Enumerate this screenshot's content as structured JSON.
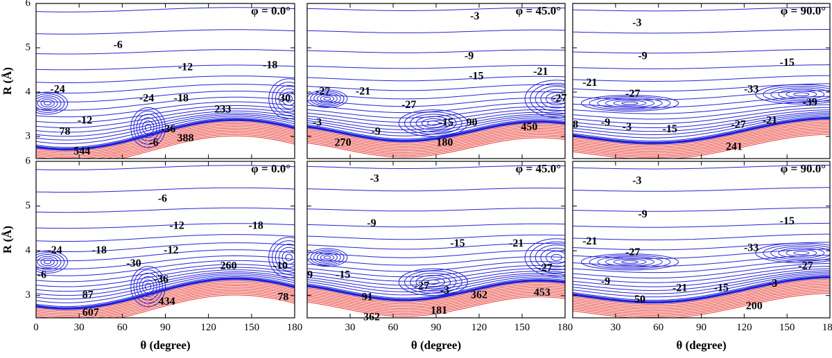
{
  "colors": {
    "attractive": "#2323d8",
    "repulsive": "#e8332b",
    "axis": "#000000"
  },
  "chart_data": [
    {
      "type": "contour",
      "row": 0,
      "col": 0,
      "phi_label": "φ = 0.0°",
      "kind": 0,
      "xlim": [
        0,
        180
      ],
      "ylim": [
        2.5,
        6
      ],
      "contour_labels": [
        {
          "text": "-6",
          "x": 57,
          "y": 5.05
        },
        {
          "text": "-12",
          "x": 104,
          "y": 4.55
        },
        {
          "text": "-18",
          "x": 163,
          "y": 4.6
        },
        {
          "text": "-24",
          "x": 15,
          "y": 4.05
        },
        {
          "text": "-24",
          "x": 77,
          "y": 3.85
        },
        {
          "text": "-18",
          "x": 101,
          "y": 3.85
        },
        {
          "text": "-30",
          "x": 172,
          "y": 3.85
        },
        {
          "text": "-12",
          "x": 34,
          "y": 3.35
        },
        {
          "text": "-36",
          "x": 92,
          "y": 3.15
        },
        {
          "text": "233",
          "x": 130,
          "y": 3.6
        },
        {
          "text": "78",
          "x": 20,
          "y": 3.1
        },
        {
          "text": "-6",
          "x": 82,
          "y": 2.85
        },
        {
          "text": "388",
          "x": 104,
          "y": 2.95
        },
        {
          "text": "544",
          "x": 32,
          "y": 2.65
        }
      ]
    },
    {
      "type": "contour",
      "row": 0,
      "col": 1,
      "phi_label": "φ = 45.0°",
      "kind": 1,
      "xlim": [
        0,
        180
      ],
      "ylim": [
        2.5,
        6
      ],
      "contour_labels": [
        {
          "text": "-3",
          "x": 117,
          "y": 5.7
        },
        {
          "text": "-9",
          "x": 113,
          "y": 4.8
        },
        {
          "text": "-15",
          "x": 118,
          "y": 4.35
        },
        {
          "text": "-21",
          "x": 163,
          "y": 4.45
        },
        {
          "text": "-27",
          "x": 11,
          "y": 4.0
        },
        {
          "text": "-21",
          "x": 39,
          "y": 4.0
        },
        {
          "text": "-27",
          "x": 176,
          "y": 3.85
        },
        {
          "text": "-27",
          "x": 71,
          "y": 3.7
        },
        {
          "text": "-3",
          "x": 7,
          "y": 3.3
        },
        {
          "text": "-9",
          "x": 48,
          "y": 3.1
        },
        {
          "text": "-15",
          "x": 97,
          "y": 3.3
        },
        {
          "text": "90",
          "x": 115,
          "y": 3.3
        },
        {
          "text": "450",
          "x": 155,
          "y": 3.2
        },
        {
          "text": "180",
          "x": 96,
          "y": 2.85
        },
        {
          "text": "270",
          "x": 25,
          "y": 2.85
        }
      ]
    },
    {
      "type": "contour",
      "row": 0,
      "col": 2,
      "phi_label": "φ = 90.0°",
      "kind": 2,
      "xlim": [
        0,
        180
      ],
      "ylim": [
        2.5,
        6
      ],
      "contour_labels": [
        {
          "text": "-3",
          "x": 45,
          "y": 5.55
        },
        {
          "text": "-9",
          "x": 49,
          "y": 4.8
        },
        {
          "text": "-15",
          "x": 150,
          "y": 4.65
        },
        {
          "text": "-21",
          "x": 12,
          "y": 4.2
        },
        {
          "text": "-33",
          "x": 125,
          "y": 4.05
        },
        {
          "text": "-27",
          "x": 42,
          "y": 3.95
        },
        {
          "text": "-39",
          "x": 166,
          "y": 3.75
        },
        {
          "text": "8",
          "x": 2,
          "y": 3.25
        },
        {
          "text": "-9",
          "x": 23,
          "y": 3.3
        },
        {
          "text": "-3",
          "x": 38,
          "y": 3.2
        },
        {
          "text": "-15",
          "x": 68,
          "y": 3.15
        },
        {
          "text": "-27",
          "x": 116,
          "y": 3.25
        },
        {
          "text": "-21",
          "x": 138,
          "y": 3.35
        },
        {
          "text": "241",
          "x": 113,
          "y": 2.75
        }
      ]
    },
    {
      "type": "contour",
      "row": 1,
      "col": 0,
      "phi_label": "φ = 0.0°",
      "kind": 0,
      "xlim": [
        0,
        180
      ],
      "ylim": [
        2.5,
        6
      ],
      "contour_labels": [
        {
          "text": "-6",
          "x": 88,
          "y": 5.15
        },
        {
          "text": "-12",
          "x": 98,
          "y": 4.55
        },
        {
          "text": "-18",
          "x": 153,
          "y": 4.55
        },
        {
          "text": "-24",
          "x": 13,
          "y": 4.0
        },
        {
          "text": "-18",
          "x": 44,
          "y": 4.0
        },
        {
          "text": "-12",
          "x": 94,
          "y": 4.0
        },
        {
          "text": "-30",
          "x": 68,
          "y": 3.7
        },
        {
          "text": "-10",
          "x": 170,
          "y": 3.65
        },
        {
          "text": "-6",
          "x": 4,
          "y": 3.45
        },
        {
          "text": "-36",
          "x": 87,
          "y": 3.35
        },
        {
          "text": "260",
          "x": 134,
          "y": 3.65
        },
        {
          "text": "87",
          "x": 36,
          "y": 3.0
        },
        {
          "text": "434",
          "x": 91,
          "y": 2.85
        },
        {
          "text": "78",
          "x": 172,
          "y": 2.95
        },
        {
          "text": "607",
          "x": 38,
          "y": 2.6
        }
      ]
    },
    {
      "type": "contour",
      "row": 1,
      "col": 1,
      "phi_label": "φ = 45.0°",
      "kind": 1,
      "xlim": [
        0,
        180
      ],
      "ylim": [
        2.5,
        6
      ],
      "contour_labels": [
        {
          "text": "-3",
          "x": 47,
          "y": 5.6
        },
        {
          "text": "-9",
          "x": 45,
          "y": 4.6
        },
        {
          "text": "-15",
          "x": 105,
          "y": 4.15
        },
        {
          "text": "-21",
          "x": 146,
          "y": 4.15
        },
        {
          "text": "9",
          "x": 2,
          "y": 3.45
        },
        {
          "text": "-15",
          "x": 25,
          "y": 3.45
        },
        {
          "text": "-27",
          "x": 80,
          "y": 3.2
        },
        {
          "text": "-27",
          "x": 166,
          "y": 3.6
        },
        {
          "text": "-3",
          "x": 96,
          "y": 3.1
        },
        {
          "text": "91",
          "x": 42,
          "y": 2.95
        },
        {
          "text": "362",
          "x": 120,
          "y": 3.0
        },
        {
          "text": "453",
          "x": 164,
          "y": 3.05
        },
        {
          "text": "181",
          "x": 92,
          "y": 2.65
        },
        {
          "text": "362",
          "x": 45,
          "y": 2.5
        }
      ]
    },
    {
      "type": "contour",
      "row": 1,
      "col": 2,
      "phi_label": "φ = 90.0°",
      "kind": 2,
      "xlim": [
        0,
        180
      ],
      "ylim": [
        2.5,
        6
      ],
      "contour_labels": [
        {
          "text": "-3",
          "x": 45,
          "y": 5.55
        },
        {
          "text": "-9",
          "x": 49,
          "y": 4.8
        },
        {
          "text": "-15",
          "x": 150,
          "y": 4.65
        },
        {
          "text": "-21",
          "x": 12,
          "y": 4.2
        },
        {
          "text": "-33",
          "x": 125,
          "y": 4.05
        },
        {
          "text": "-27",
          "x": 42,
          "y": 3.95
        },
        {
          "text": "-27",
          "x": 163,
          "y": 3.65
        },
        {
          "text": "-9",
          "x": 23,
          "y": 3.3
        },
        {
          "text": "-21",
          "x": 75,
          "y": 3.15
        },
        {
          "text": "-15",
          "x": 104,
          "y": 3.15
        },
        {
          "text": "-3",
          "x": 140,
          "y": 3.25
        },
        {
          "text": "50",
          "x": 47,
          "y": 2.9
        },
        {
          "text": "200",
          "x": 127,
          "y": 2.75
        }
      ]
    }
  ],
  "axes": {
    "xlabel": "θ (degree)",
    "ylabel": "R (Å)",
    "xticks": [
      0,
      30,
      60,
      90,
      120,
      150,
      180
    ],
    "xtick_labels": [
      "0",
      "30",
      "60",
      "90",
      "120",
      "150",
      "180"
    ],
    "yticks": [
      3,
      4,
      5,
      6
    ],
    "ytick_labels": [
      "3",
      "4",
      "5",
      "6"
    ]
  }
}
